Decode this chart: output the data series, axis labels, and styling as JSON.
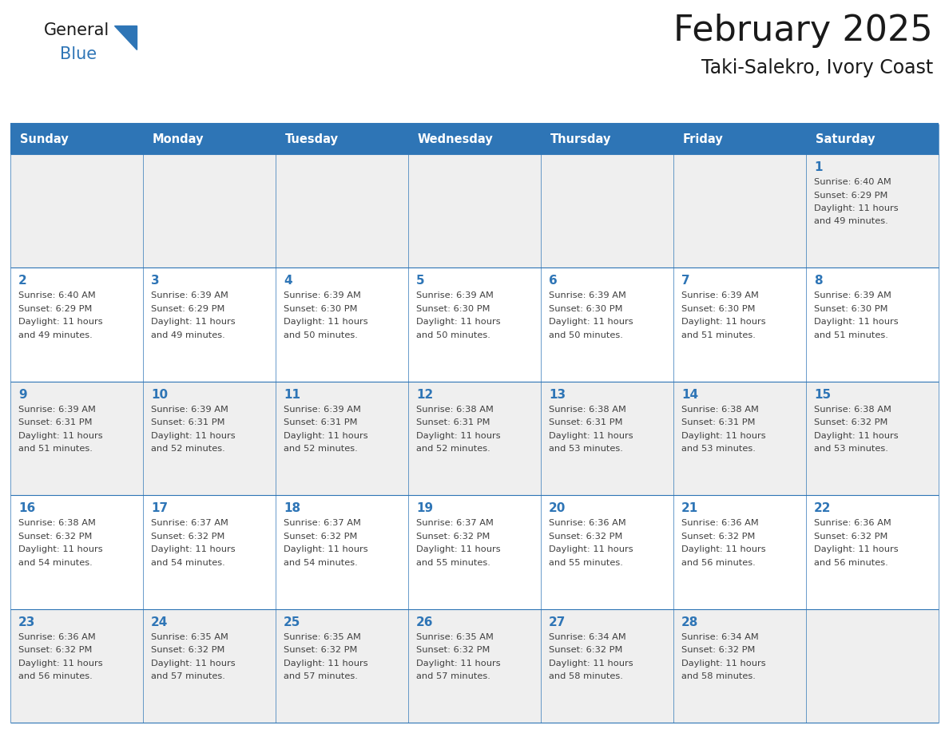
{
  "title": "February 2025",
  "subtitle": "Taki-Salekro, Ivory Coast",
  "header_bg": "#2E75B6",
  "header_text_color": "#FFFFFF",
  "cell_bg_odd": "#EFEFEF",
  "cell_bg_even": "#FFFFFF",
  "day_number_color": "#2E75B6",
  "text_color": "#404040",
  "line_color": "#2E75B6",
  "days_of_week": [
    "Sunday",
    "Monday",
    "Tuesday",
    "Wednesday",
    "Thursday",
    "Friday",
    "Saturday"
  ],
  "calendar": [
    [
      null,
      null,
      null,
      null,
      null,
      null,
      1
    ],
    [
      2,
      3,
      4,
      5,
      6,
      7,
      8
    ],
    [
      9,
      10,
      11,
      12,
      13,
      14,
      15
    ],
    [
      16,
      17,
      18,
      19,
      20,
      21,
      22
    ],
    [
      23,
      24,
      25,
      26,
      27,
      28,
      null
    ]
  ],
  "cell_data": {
    "1": {
      "sunrise": "6:40 AM",
      "sunset": "6:29 PM",
      "dl1": "Daylight: 11 hours",
      "dl2": "and 49 minutes."
    },
    "2": {
      "sunrise": "6:40 AM",
      "sunset": "6:29 PM",
      "dl1": "Daylight: 11 hours",
      "dl2": "and 49 minutes."
    },
    "3": {
      "sunrise": "6:39 AM",
      "sunset": "6:29 PM",
      "dl1": "Daylight: 11 hours",
      "dl2": "and 49 minutes."
    },
    "4": {
      "sunrise": "6:39 AM",
      "sunset": "6:30 PM",
      "dl1": "Daylight: 11 hours",
      "dl2": "and 50 minutes."
    },
    "5": {
      "sunrise": "6:39 AM",
      "sunset": "6:30 PM",
      "dl1": "Daylight: 11 hours",
      "dl2": "and 50 minutes."
    },
    "6": {
      "sunrise": "6:39 AM",
      "sunset": "6:30 PM",
      "dl1": "Daylight: 11 hours",
      "dl2": "and 50 minutes."
    },
    "7": {
      "sunrise": "6:39 AM",
      "sunset": "6:30 PM",
      "dl1": "Daylight: 11 hours",
      "dl2": "and 51 minutes."
    },
    "8": {
      "sunrise": "6:39 AM",
      "sunset": "6:30 PM",
      "dl1": "Daylight: 11 hours",
      "dl2": "and 51 minutes."
    },
    "9": {
      "sunrise": "6:39 AM",
      "sunset": "6:31 PM",
      "dl1": "Daylight: 11 hours",
      "dl2": "and 51 minutes."
    },
    "10": {
      "sunrise": "6:39 AM",
      "sunset": "6:31 PM",
      "dl1": "Daylight: 11 hours",
      "dl2": "and 52 minutes."
    },
    "11": {
      "sunrise": "6:39 AM",
      "sunset": "6:31 PM",
      "dl1": "Daylight: 11 hours",
      "dl2": "and 52 minutes."
    },
    "12": {
      "sunrise": "6:38 AM",
      "sunset": "6:31 PM",
      "dl1": "Daylight: 11 hours",
      "dl2": "and 52 minutes."
    },
    "13": {
      "sunrise": "6:38 AM",
      "sunset": "6:31 PM",
      "dl1": "Daylight: 11 hours",
      "dl2": "and 53 minutes."
    },
    "14": {
      "sunrise": "6:38 AM",
      "sunset": "6:31 PM",
      "dl1": "Daylight: 11 hours",
      "dl2": "and 53 minutes."
    },
    "15": {
      "sunrise": "6:38 AM",
      "sunset": "6:32 PM",
      "dl1": "Daylight: 11 hours",
      "dl2": "and 53 minutes."
    },
    "16": {
      "sunrise": "6:38 AM",
      "sunset": "6:32 PM",
      "dl1": "Daylight: 11 hours",
      "dl2": "and 54 minutes."
    },
    "17": {
      "sunrise": "6:37 AM",
      "sunset": "6:32 PM",
      "dl1": "Daylight: 11 hours",
      "dl2": "and 54 minutes."
    },
    "18": {
      "sunrise": "6:37 AM",
      "sunset": "6:32 PM",
      "dl1": "Daylight: 11 hours",
      "dl2": "and 54 minutes."
    },
    "19": {
      "sunrise": "6:37 AM",
      "sunset": "6:32 PM",
      "dl1": "Daylight: 11 hours",
      "dl2": "and 55 minutes."
    },
    "20": {
      "sunrise": "6:36 AM",
      "sunset": "6:32 PM",
      "dl1": "Daylight: 11 hours",
      "dl2": "and 55 minutes."
    },
    "21": {
      "sunrise": "6:36 AM",
      "sunset": "6:32 PM",
      "dl1": "Daylight: 11 hours",
      "dl2": "and 56 minutes."
    },
    "22": {
      "sunrise": "6:36 AM",
      "sunset": "6:32 PM",
      "dl1": "Daylight: 11 hours",
      "dl2": "and 56 minutes."
    },
    "23": {
      "sunrise": "6:36 AM",
      "sunset": "6:32 PM",
      "dl1": "Daylight: 11 hours",
      "dl2": "and 56 minutes."
    },
    "24": {
      "sunrise": "6:35 AM",
      "sunset": "6:32 PM",
      "dl1": "Daylight: 11 hours",
      "dl2": "and 57 minutes."
    },
    "25": {
      "sunrise": "6:35 AM",
      "sunset": "6:32 PM",
      "dl1": "Daylight: 11 hours",
      "dl2": "and 57 minutes."
    },
    "26": {
      "sunrise": "6:35 AM",
      "sunset": "6:32 PM",
      "dl1": "Daylight: 11 hours",
      "dl2": "and 57 minutes."
    },
    "27": {
      "sunrise": "6:34 AM",
      "sunset": "6:32 PM",
      "dl1": "Daylight: 11 hours",
      "dl2": "and 58 minutes."
    },
    "28": {
      "sunrise": "6:34 AM",
      "sunset": "6:32 PM",
      "dl1": "Daylight: 11 hours",
      "dl2": "and 58 minutes."
    }
  }
}
